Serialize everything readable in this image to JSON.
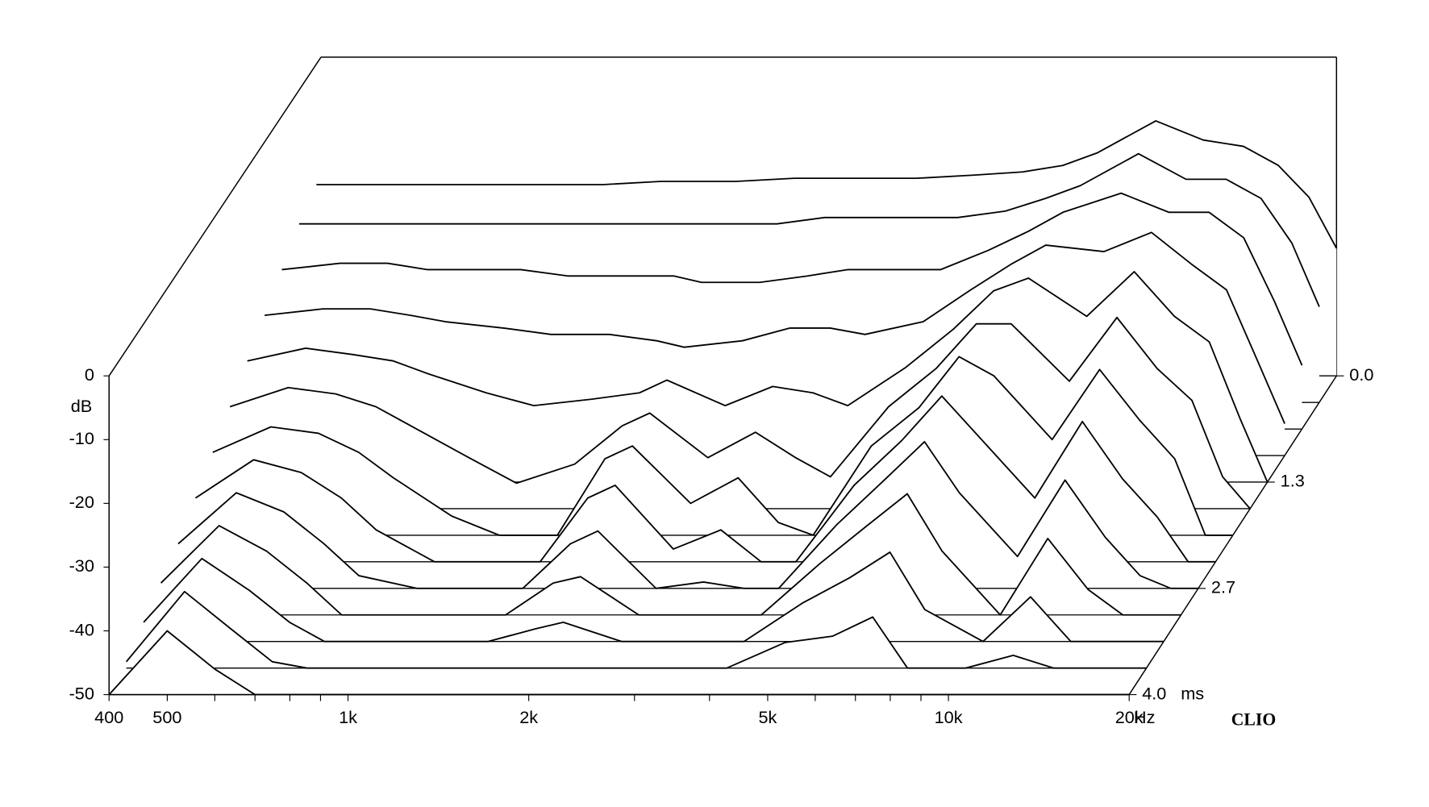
{
  "chart_data": {
    "type": "waterfall",
    "y_label": "dB",
    "x_unit": "Hz",
    "z_unit": "ms",
    "watermark": "CLIO",
    "xscale": "log",
    "xlim": [
      400,
      20000
    ],
    "xticks": [
      400,
      500,
      {
        "value": 1000,
        "label": "1k"
      },
      {
        "value": 2000,
        "label": "2k"
      },
      {
        "value": 5000,
        "label": "5k"
      },
      {
        "value": 10000,
        "label": "10k"
      },
      {
        "value": 20000,
        "label": "20k"
      }
    ],
    "xminorticks": [
      600,
      700,
      800,
      900,
      3000,
      4000,
      6000,
      7000,
      8000,
      9000
    ],
    "ylim": [
      -50,
      0
    ],
    "yticks": [
      0,
      -10,
      -20,
      -30,
      -40,
      -50
    ],
    "zlim": [
      0,
      4
    ],
    "zticks": [
      {
        "value": 0,
        "label": "0.0"
      },
      {
        "value": 1.333,
        "label": "1.3"
      },
      {
        "value": 2.667,
        "label": "2.7"
      },
      {
        "value": 4,
        "label": "4.0"
      }
    ],
    "color": "#000000",
    "x": [
      400,
      500,
      600,
      700,
      800,
      1000,
      1200,
      1500,
      1800,
      2000,
      2500,
      3000,
      3500,
      4000,
      5000,
      6000,
      7000,
      8000,
      10000,
      12000,
      14000,
      16000,
      18000,
      20000
    ],
    "z": [
      0,
      0.333,
      0.667,
      1.0,
      1.333,
      1.667,
      2.0,
      2.333,
      2.667,
      3.0,
      3.333,
      3.667,
      4.0
    ],
    "series": [
      {
        "values": [
          -20,
          -20,
          -20,
          -20,
          -20,
          -20,
          -20,
          -19.5,
          -19.5,
          -19.5,
          -19,
          -19,
          -19,
          -19,
          -18.5,
          -18,
          -17,
          -15,
          -10,
          -13,
          -14,
          -17,
          -22,
          -30
        ]
      },
      {
        "values": [
          -22,
          -22,
          -22,
          -22,
          -22,
          -22,
          -22,
          -22,
          -22,
          -22,
          -22,
          -21,
          -21,
          -21,
          -21,
          -20,
          -18,
          -16,
          -11,
          -15,
          -15,
          -18,
          -25,
          -35
        ]
      },
      {
        "values": [
          -25,
          -24,
          -24,
          -25,
          -25,
          -25,
          -26,
          -26,
          -26,
          -27,
          -27,
          -26,
          -25,
          -25,
          -25,
          -22,
          -19,
          -16,
          -13,
          -16,
          -16,
          -20,
          -30,
          -40
        ]
      },
      {
        "values": [
          -28,
          -27,
          -27,
          -28,
          -29,
          -30,
          -31,
          -31,
          -32,
          -33,
          -32,
          -30,
          -30,
          -31,
          -29,
          -24,
          -20,
          -17,
          -18,
          -15,
          -20,
          -24,
          -35,
          -45
        ]
      },
      {
        "values": [
          -31,
          -29,
          -30,
          -31,
          -33,
          -36,
          -38,
          -37,
          -36,
          -34,
          -38,
          -35,
          -36,
          -38,
          -32,
          -26,
          -20,
          -18,
          -24,
          -17,
          -24,
          -28,
          -40,
          -50
        ]
      },
      {
        "values": [
          -34,
          -31,
          -32,
          -34,
          -37,
          -42,
          -46,
          -43,
          -37,
          -35,
          -42,
          -38,
          -42,
          -45,
          -34,
          -28,
          -21,
          -21,
          -30,
          -20,
          -28,
          -33,
          -45,
          -50
        ]
      },
      {
        "values": [
          -37,
          -33,
          -34,
          -37,
          -41,
          -47,
          -50,
          -50,
          -38,
          -36,
          -45,
          -41,
          -48,
          -50,
          -36,
          -30,
          -22,
          -25,
          -35,
          -24,
          -32,
          -38,
          -50,
          -50
        ]
      },
      {
        "values": [
          -40,
          -34,
          -36,
          -40,
          -45,
          -50,
          -50,
          -50,
          -40,
          -38,
          -48,
          -45,
          -50,
          -50,
          -38,
          -31,
          -24,
          -30,
          -40,
          -28,
          -37,
          -43,
          -50,
          -50
        ]
      },
      {
        "values": [
          -43,
          -35,
          -38,
          -43,
          -48,
          -50,
          -50,
          -50,
          -43,
          -41,
          -50,
          -49,
          -50,
          -50,
          -40,
          -33,
          -27,
          -35,
          -45,
          -33,
          -42,
          -48,
          -50,
          -50
        ]
      },
      {
        "values": [
          -45,
          -36,
          -40,
          -45,
          -50,
          -50,
          -50,
          -50,
          -45,
          -44,
          -50,
          -50,
          -50,
          -50,
          -42,
          -36,
          -31,
          -40,
          -50,
          -38,
          -46,
          -50,
          -50,
          -50
        ]
      },
      {
        "values": [
          -47,
          -37,
          -42,
          -47,
          -50,
          -50,
          -50,
          -50,
          -48,
          -47,
          -50,
          -50,
          -50,
          -50,
          -44,
          -40,
          -36,
          -45,
          -50,
          -43,
          -50,
          -50,
          -50,
          -50
        ]
      },
      {
        "values": [
          -49,
          -38,
          -44,
          -49,
          -50,
          -50,
          -50,
          -50,
          -50,
          -50,
          -50,
          -50,
          -50,
          -50,
          -46,
          -45,
          -42,
          -50,
          -50,
          -48,
          -50,
          -50,
          -50,
          -50
        ]
      },
      {
        "values": [
          -50,
          -40,
          -46,
          -50,
          -50,
          -50,
          -50,
          -50,
          -50,
          -50,
          -50,
          -50,
          -50,
          -50,
          -50,
          -50,
          -50,
          -50,
          -50,
          -50,
          -50,
          -50,
          -50,
          -50
        ]
      }
    ]
  }
}
